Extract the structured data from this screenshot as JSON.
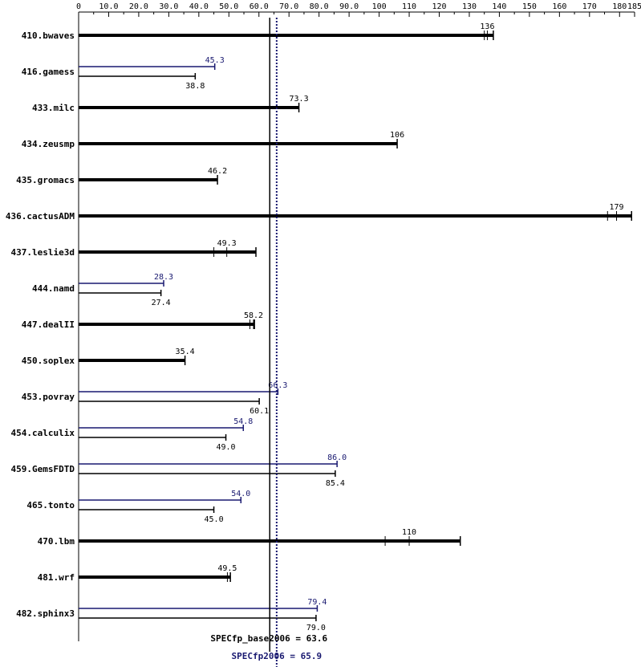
{
  "colors": {
    "base": "#000000",
    "peak": "#191970",
    "background": "#ffffff"
  },
  "chart_data": {
    "type": "bar",
    "orientation": "horizontal",
    "xlim": [
      0,
      185
    ],
    "x_ticks": [
      0,
      10,
      20,
      30,
      40,
      50,
      60,
      70,
      80,
      90,
      100,
      110,
      120,
      130,
      140,
      150,
      160,
      170,
      180,
      185
    ],
    "x_tick_labels": [
      "0",
      "10.0",
      "20.0",
      "30.0",
      "40.0",
      "50.0",
      "60.0",
      "70.0",
      "80.0",
      "90.0",
      "100",
      "110",
      "120",
      "130",
      "140",
      "150",
      "160",
      "170",
      "180",
      "185"
    ],
    "categories": [
      "410.bwaves",
      "416.gamess",
      "433.milc",
      "434.zeusmp",
      "435.gromacs",
      "436.cactusADM",
      "437.leslie3d",
      "444.namd",
      "447.dealII",
      "450.soplex",
      "453.povray",
      "454.calculix",
      "459.GemsFDTD",
      "465.tonto",
      "470.lbm",
      "481.wrf",
      "482.sphinx3"
    ],
    "series": [
      {
        "name": "SPECfp2006",
        "values": [
          null,
          45.3,
          null,
          null,
          null,
          null,
          null,
          28.3,
          null,
          null,
          66.3,
          54.8,
          86.0,
          54.0,
          null,
          null,
          79.4
        ],
        "value_labels": [
          "",
          "45.3",
          "",
          "",
          "",
          "",
          "",
          "28.3",
          "",
          "",
          "66.3",
          "54.8",
          "86.0",
          "54.0",
          "",
          "",
          "79.4"
        ]
      },
      {
        "name": "SPECfp_base2006",
        "values": [
          136,
          38.8,
          73.3,
          106,
          46.2,
          179,
          49.3,
          27.4,
          58.2,
          35.4,
          60.1,
          49.0,
          85.4,
          45.0,
          110,
          49.5,
          79.0
        ],
        "value_labels": [
          "136",
          "38.8",
          "73.3",
          "106",
          "46.2",
          "179",
          "49.3",
          "27.4",
          "58.2",
          "35.4",
          "60.1",
          "49.0",
          "85.4",
          "45.0",
          "110",
          "49.5",
          "79.0"
        ],
        "run_extents": [
          [
            135,
            138
          ],
          null,
          null,
          null,
          null,
          [
            176,
            184
          ],
          [
            45,
            59
          ],
          null,
          [
            57,
            58.5
          ],
          null,
          [
            59,
            60.5
          ],
          null,
          [
            85,
            86
          ],
          null,
          [
            102,
            127
          ],
          [
            49.5,
            50.5
          ],
          null
        ]
      }
    ],
    "reference_lines": [
      {
        "label": "SPECfp_base2006 = 63.6",
        "value": 63.6,
        "style": "solid"
      },
      {
        "label": "SPECfp2006 = 65.9",
        "value": 65.9,
        "style": "dotted"
      }
    ]
  }
}
